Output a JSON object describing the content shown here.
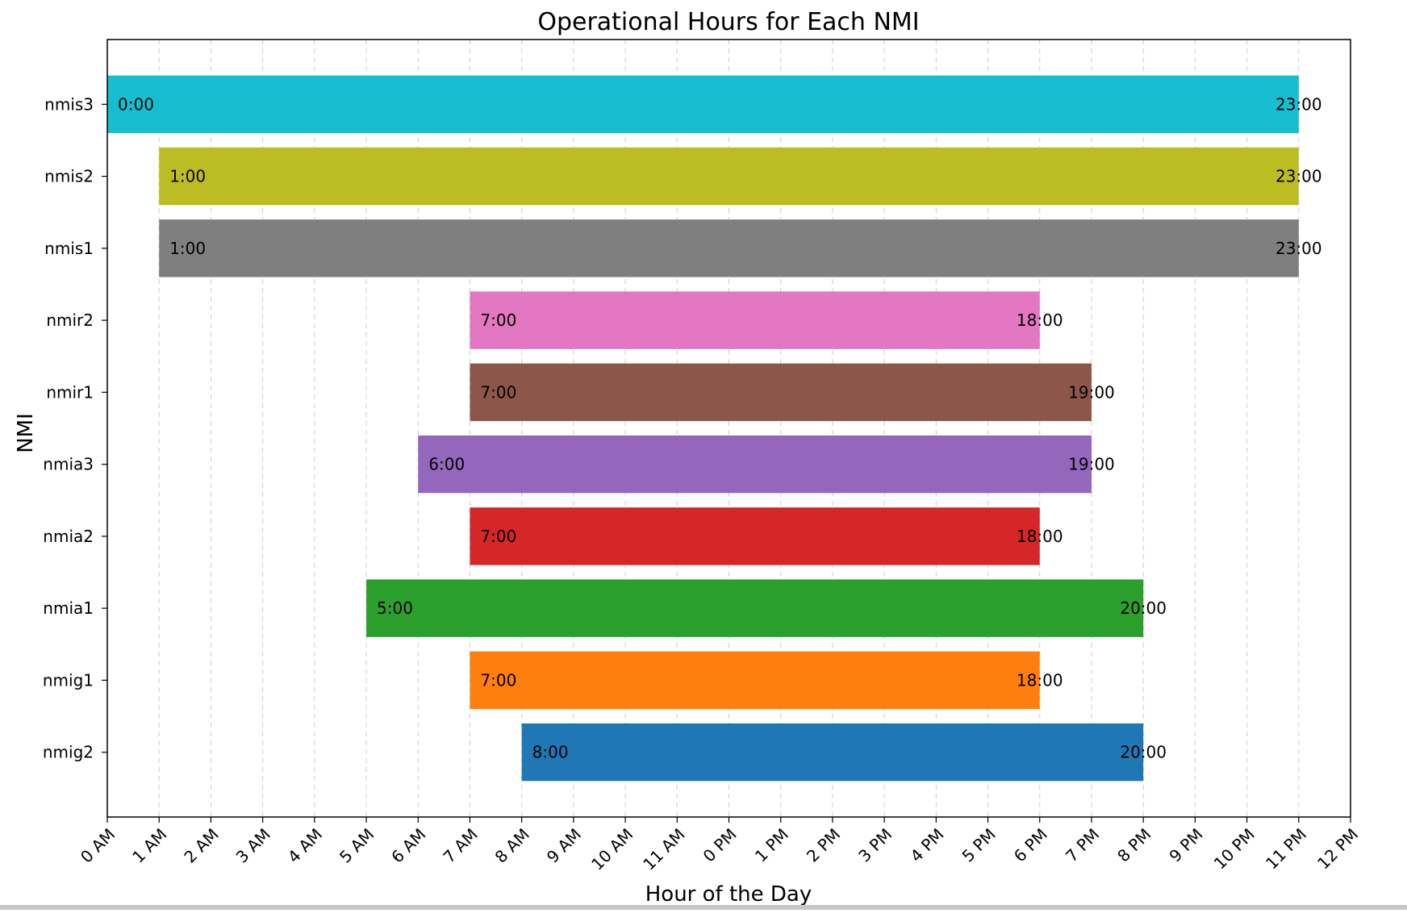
{
  "chart_data": {
    "type": "bar",
    "orientation": "horizontal",
    "title": "Operational Hours for Each NMI",
    "xlabel": "Hour of the Day",
    "ylabel": "NMI",
    "xlim": [
      0,
      24
    ],
    "grid": "x-dashed",
    "x_ticks": [
      {
        "value": 0,
        "label": "0 AM"
      },
      {
        "value": 1,
        "label": "1 AM"
      },
      {
        "value": 2,
        "label": "2 AM"
      },
      {
        "value": 3,
        "label": "3 AM"
      },
      {
        "value": 4,
        "label": "4 AM"
      },
      {
        "value": 5,
        "label": "5 AM"
      },
      {
        "value": 6,
        "label": "6 AM"
      },
      {
        "value": 7,
        "label": "7 AM"
      },
      {
        "value": 8,
        "label": "8 AM"
      },
      {
        "value": 9,
        "label": "9 AM"
      },
      {
        "value": 10,
        "label": "10 AM"
      },
      {
        "value": 11,
        "label": "11 AM"
      },
      {
        "value": 12,
        "label": "0 PM"
      },
      {
        "value": 13,
        "label": "1 PM"
      },
      {
        "value": 14,
        "label": "2 PM"
      },
      {
        "value": 15,
        "label": "3 PM"
      },
      {
        "value": 16,
        "label": "4 PM"
      },
      {
        "value": 17,
        "label": "5 PM"
      },
      {
        "value": 18,
        "label": "6 PM"
      },
      {
        "value": 19,
        "label": "7 PM"
      },
      {
        "value": 20,
        "label": "8 PM"
      },
      {
        "value": 21,
        "label": "9 PM"
      },
      {
        "value": 22,
        "label": "10 PM"
      },
      {
        "value": 23,
        "label": "11 PM"
      },
      {
        "value": 24,
        "label": "12 PM"
      }
    ],
    "bars": [
      {
        "category": "nmig2",
        "start": 8,
        "end": 20,
        "start_label": "8:00",
        "end_label": "20:00",
        "color": "#1f77b4"
      },
      {
        "category": "nmig1",
        "start": 7,
        "end": 18,
        "start_label": "7:00",
        "end_label": "18:00",
        "color": "#ff7f0e"
      },
      {
        "category": "nmia1",
        "start": 5,
        "end": 20,
        "start_label": "5:00",
        "end_label": "20:00",
        "color": "#2ca02c"
      },
      {
        "category": "nmia2",
        "start": 7,
        "end": 18,
        "start_label": "7:00",
        "end_label": "18:00",
        "color": "#d62728"
      },
      {
        "category": "nmia3",
        "start": 6,
        "end": 19,
        "start_label": "6:00",
        "end_label": "19:00",
        "color": "#9467bd"
      },
      {
        "category": "nmir1",
        "start": 7,
        "end": 19,
        "start_label": "7:00",
        "end_label": "19:00",
        "color": "#8c564b"
      },
      {
        "category": "nmir2",
        "start": 7,
        "end": 18,
        "start_label": "7:00",
        "end_label": "18:00",
        "color": "#e377c2"
      },
      {
        "category": "nmis1",
        "start": 1,
        "end": 23,
        "start_label": "1:00",
        "end_label": "23:00",
        "color": "#7f7f7f"
      },
      {
        "category": "nmis2",
        "start": 1,
        "end": 23,
        "start_label": "1:00",
        "end_label": "23:00",
        "color": "#bcbd22"
      },
      {
        "category": "nmis3",
        "start": 0,
        "end": 23,
        "start_label": "0:00",
        "end_label": "23:00",
        "color": "#17becf"
      }
    ]
  }
}
